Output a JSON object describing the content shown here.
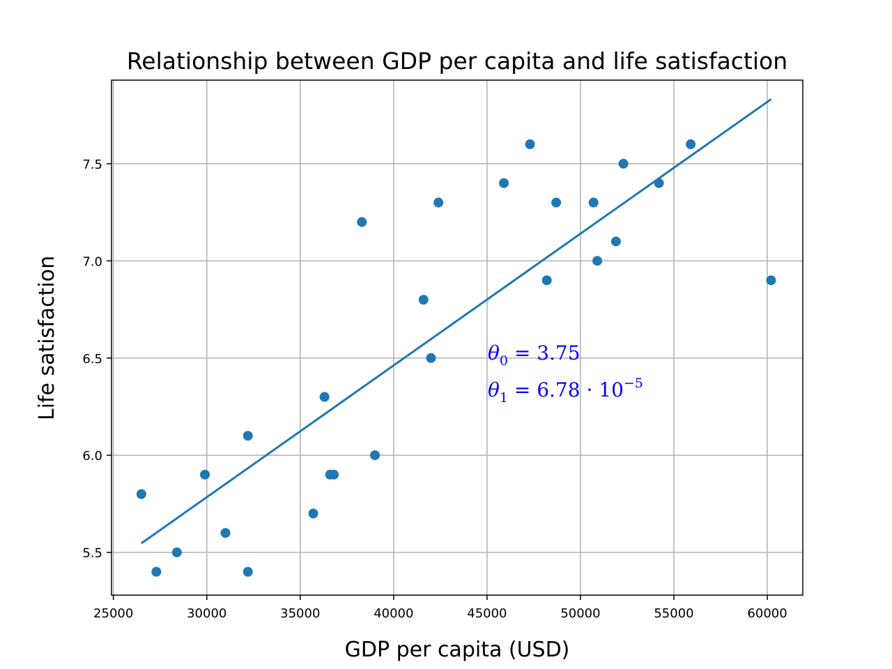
{
  "chart_data": {
    "type": "scatter",
    "title": "Relationship between GDP per capita and life satisfaction",
    "xlabel": "GDP per capita (USD)",
    "ylabel": "Life satisfaction",
    "xlim": [
      24900,
      61900
    ],
    "ylim": [
      5.28,
      7.93
    ],
    "xticks": [
      25000,
      30000,
      35000,
      40000,
      45000,
      50000,
      55000,
      60000
    ],
    "xtick_labels": [
      "25000",
      "30000",
      "35000",
      "40000",
      "45000",
      "50000",
      "55000",
      "60000"
    ],
    "yticks": [
      5.5,
      6.0,
      6.5,
      7.0,
      7.5
    ],
    "ytick_labels": [
      "5.5",
      "6.0",
      "6.5",
      "7.0",
      "7.5"
    ],
    "grid": true,
    "point_color": "#1f77b4",
    "line_color": "#1f77b4",
    "points": [
      {
        "x": 26500,
        "y": 5.8
      },
      {
        "x": 27300,
        "y": 5.4
      },
      {
        "x": 28400,
        "y": 5.5
      },
      {
        "x": 29900,
        "y": 5.9
      },
      {
        "x": 31000,
        "y": 5.6
      },
      {
        "x": 32200,
        "y": 5.4
      },
      {
        "x": 32200,
        "y": 6.1
      },
      {
        "x": 35700,
        "y": 5.7
      },
      {
        "x": 36300,
        "y": 6.3
      },
      {
        "x": 36600,
        "y": 5.9
      },
      {
        "x": 36800,
        "y": 5.9
      },
      {
        "x": 38300,
        "y": 7.2
      },
      {
        "x": 39000,
        "y": 6.0
      },
      {
        "x": 41600,
        "y": 6.8
      },
      {
        "x": 42000,
        "y": 6.5
      },
      {
        "x": 42400,
        "y": 7.3
      },
      {
        "x": 45900,
        "y": 7.4
      },
      {
        "x": 47300,
        "y": 7.6
      },
      {
        "x": 48200,
        "y": 6.9
      },
      {
        "x": 48700,
        "y": 7.3
      },
      {
        "x": 50700,
        "y": 7.3
      },
      {
        "x": 50900,
        "y": 7.0
      },
      {
        "x": 51900,
        "y": 7.1
      },
      {
        "x": 52300,
        "y": 7.5
      },
      {
        "x": 54200,
        "y": 7.4
      },
      {
        "x": 55900,
        "y": 7.6
      },
      {
        "x": 60200,
        "y": 6.9
      }
    ],
    "fit_line": {
      "theta0": 3.75,
      "theta1": 6.78e-05,
      "x_start": 26500,
      "x_end": 60200
    },
    "annotations": [
      {
        "symbol": "θ",
        "subscript": "0",
        "text": " = 3.75",
        "superscript": "",
        "color": "#0000ff"
      },
      {
        "symbol": "θ",
        "subscript": "1",
        "text": " = 6.78 · 10",
        "superscript": "−5",
        "color": "#0000ff"
      }
    ]
  }
}
